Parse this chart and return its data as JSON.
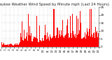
{
  "title": "Milwaukee Weather Wind Speed by Minute mph (Last 24 Hours)",
  "bar_color": "#ff0000",
  "background_color": "#ffffff",
  "plot_bg_color": "#ffffff",
  "grid_color": "#aaaaaa",
  "ylim": [
    0,
    25
  ],
  "yticks": [
    0,
    5,
    10,
    15,
    20,
    25
  ],
  "n_bars": 1440,
  "title_fontsize": 3.8,
  "tick_fontsize": 3.0
}
